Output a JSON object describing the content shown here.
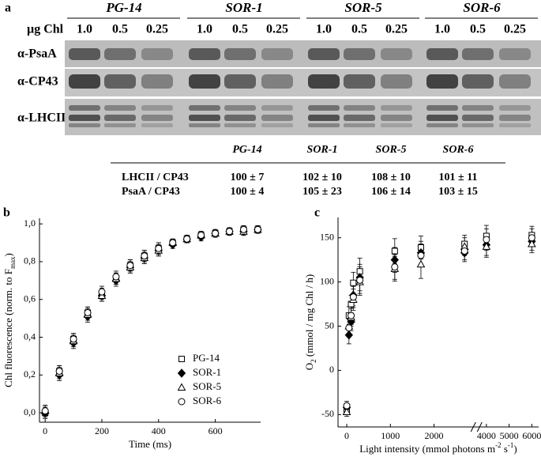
{
  "panel_labels": [
    "a",
    "b",
    "c"
  ],
  "blot": {
    "groups": [
      "PG-14",
      "SOR-1",
      "SOR-5",
      "SOR-6"
    ],
    "load_label": "µg Chl",
    "loads": [
      "1.0",
      "0.5",
      "0.25"
    ],
    "antibodies": [
      "α-PsaA",
      "α-CP43",
      "α-LHCII"
    ]
  },
  "table": {
    "columns": [
      "PG-14",
      "SOR-1",
      "SOR-5",
      "SOR-6"
    ],
    "rows": [
      [
        "LHCII / CP43",
        "100 ± 7",
        "102 ± 10",
        "108 ± 10",
        "101 ± 11"
      ],
      [
        "PsaA / CP43",
        "100 ± 4",
        "105 ± 23",
        "106 ± 14",
        "103 ± 15"
      ]
    ]
  },
  "chart_data": [
    {
      "type": "scatter",
      "x": [
        0,
        50,
        100,
        150,
        200,
        250,
        300,
        350,
        400,
        450,
        500,
        550,
        600,
        650,
        700,
        750
      ],
      "series": [
        {
          "name": "PG-14",
          "marker": "square",
          "color": "#000000",
          "fill": "#ffffff",
          "values": [
            0.0,
            0.22,
            0.39,
            0.53,
            0.63,
            0.71,
            0.78,
            0.83,
            0.87,
            0.9,
            0.92,
            0.94,
            0.95,
            0.96,
            0.97,
            0.97
          ],
          "errors": [
            0.03,
            0.03,
            0.03,
            0.03,
            0.03,
            0.03,
            0.03,
            0.03,
            0.03,
            0.02,
            0.02,
            0.02,
            0.02,
            0.02,
            0.02,
            0.02
          ]
        },
        {
          "name": "SOR-1",
          "marker": "diamond",
          "color": "#000000",
          "fill": "#000000",
          "values": [
            0.0,
            0.2,
            0.37,
            0.51,
            0.62,
            0.7,
            0.77,
            0.82,
            0.86,
            0.89,
            0.92,
            0.93,
            0.95,
            0.96,
            0.96,
            0.97
          ],
          "errors": [
            0.03,
            0.03,
            0.03,
            0.03,
            0.03,
            0.03,
            0.03,
            0.03,
            0.03,
            0.02,
            0.02,
            0.02,
            0.02,
            0.02,
            0.02,
            0.02
          ]
        },
        {
          "name": "SOR-5",
          "marker": "triangle",
          "color": "#000000",
          "fill": "#ffffff",
          "values": [
            0.01,
            0.21,
            0.38,
            0.52,
            0.62,
            0.71,
            0.77,
            0.82,
            0.86,
            0.9,
            0.92,
            0.94,
            0.95,
            0.96,
            0.96,
            0.97
          ],
          "errors": [
            0.03,
            0.03,
            0.03,
            0.03,
            0.03,
            0.03,
            0.03,
            0.03,
            0.03,
            0.02,
            0.02,
            0.02,
            0.02,
            0.02,
            0.02,
            0.02
          ]
        },
        {
          "name": "SOR-6",
          "marker": "circle",
          "color": "#000000",
          "fill": "#ffffff",
          "values": [
            0.01,
            0.22,
            0.39,
            0.53,
            0.64,
            0.72,
            0.78,
            0.83,
            0.87,
            0.9,
            0.92,
            0.94,
            0.95,
            0.96,
            0.97,
            0.97
          ],
          "errors": [
            0.03,
            0.03,
            0.03,
            0.03,
            0.03,
            0.03,
            0.03,
            0.03,
            0.03,
            0.02,
            0.02,
            0.02,
            0.02,
            0.02,
            0.02,
            0.02
          ]
        }
      ],
      "xlim": [
        -20,
        760
      ],
      "ylim": [
        -0.05,
        1.03
      ],
      "xticks": [
        0,
        200,
        400,
        600
      ],
      "yticks": [
        {
          "value": 0,
          "label": "0,0"
        },
        {
          "value": 0.2,
          "label": "0,2"
        },
        {
          "value": 0.4,
          "label": "0,4"
        },
        {
          "value": 0.6,
          "label": "0,6"
        },
        {
          "value": 0.8,
          "label": "0,8"
        },
        {
          "value": 1,
          "label": "1,0"
        }
      ],
      "xlabel": [
        "Time (ms)"
      ],
      "ylabel": [
        "Chl fluorescence (norm. to F",
        "max",
        ")"
      ],
      "legend": "lower right"
    },
    {
      "type": "scatter",
      "x": [
        0,
        50,
        100,
        150,
        300,
        1100,
        1700,
        2700,
        4000,
        6000
      ],
      "series": [
        {
          "marker": "square",
          "color": "#000000",
          "fill": "#ffffff",
          "values": [
            -45,
            62,
            75,
            99,
            112,
            135,
            139,
            143,
            152,
            153
          ],
          "errors": [
            5,
            10,
            10,
            12,
            15,
            14,
            13,
            10,
            12,
            10
          ]
        },
        {
          "marker": "diamond",
          "color": "#000000",
          "fill": "#000000",
          "values": [
            -42,
            40,
            55,
            85,
            105,
            125,
            133,
            133,
            142,
            146
          ],
          "errors": [
            5,
            10,
            10,
            12,
            15,
            14,
            13,
            10,
            12,
            10
          ]
        },
        {
          "marker": "triangle",
          "color": "#000000",
          "fill": "#ffffff",
          "values": [
            -47,
            50,
            60,
            80,
            100,
            115,
            120,
            140,
            140,
            143
          ],
          "errors": [
            5,
            10,
            10,
            12,
            15,
            14,
            16,
            10,
            12,
            10
          ]
        },
        {
          "marker": "circle",
          "color": "#000000",
          "fill": "#ffffff",
          "values": [
            -40,
            48,
            62,
            83,
            102,
            117,
            130,
            135,
            148,
            150
          ],
          "errors": [
            5,
            10,
            10,
            12,
            15,
            14,
            13,
            10,
            12,
            10
          ]
        }
      ],
      "xlim": [
        [
          -200,
          2900
        ],
        [
          3700,
          6300
        ]
      ],
      "ylim": [
        -64,
        173
      ],
      "xticks": [
        0,
        1000,
        2000,
        4000,
        5000,
        6000
      ],
      "yticks": [
        -50,
        0,
        50,
        100,
        150
      ],
      "xlabel": [
        "Light intensity (mmol photons m",
        "-2",
        " s",
        "-1",
        ")"
      ],
      "ylabel": [
        "O",
        "2",
        " (mmol / mg Chl / h)"
      ]
    }
  ]
}
